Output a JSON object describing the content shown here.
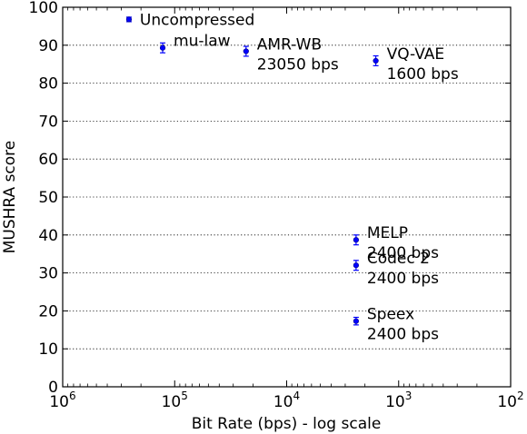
{
  "chart_data": {
    "type": "scatter",
    "title": "",
    "xlabel": "Bit Rate (bps) - log scale",
    "ylabel": "MUSHRA score",
    "x_scale": "log",
    "x_reversed": true,
    "xlim": [
      1000000,
      100
    ],
    "ylim": [
      0,
      100
    ],
    "grid": "horizontal dotted",
    "marker_color": "#0000ff",
    "x_ticks": [
      {
        "base": "10",
        "exp": "6"
      },
      {
        "base": "10",
        "exp": "5"
      },
      {
        "base": "10",
        "exp": "4"
      },
      {
        "base": "10",
        "exp": "3"
      },
      {
        "base": "10",
        "exp": "2"
      }
    ],
    "x_tick_values": [
      1000000,
      100000,
      10000,
      1000,
      100
    ],
    "y_ticks": [
      "0",
      "10",
      "20",
      "30",
      "40",
      "50",
      "60",
      "70",
      "80",
      "90",
      "100"
    ],
    "y_tick_values": [
      0,
      10,
      20,
      30,
      40,
      50,
      60,
      70,
      80,
      90,
      100
    ],
    "points": [
      {
        "x": 256000,
        "y": 96.8,
        "err": 0.6,
        "label": [
          "Uncompressed"
        ],
        "anchor": "right"
      },
      {
        "x": 128000,
        "y": 89.3,
        "err": 1.3,
        "label": [
          "mu-law"
        ],
        "anchor": "right-up"
      },
      {
        "x": 23050,
        "y": 88.4,
        "err": 1.3,
        "label": [
          "AMR-WB",
          "23050 bps"
        ],
        "anchor": "right"
      },
      {
        "x": 1600,
        "y": 85.9,
        "err": 1.3,
        "label": [
          "VQ-VAE",
          "1600 bps"
        ],
        "anchor": "right"
      },
      {
        "x": 2400,
        "y": 38.7,
        "err": 1.3,
        "label": [
          "MELP",
          "2400 bps"
        ],
        "anchor": "right"
      },
      {
        "x": 2400,
        "y": 32.0,
        "err": 1.3,
        "label": [
          "Codec 2",
          "2400 bps"
        ],
        "anchor": "right"
      },
      {
        "x": 2400,
        "y": 17.3,
        "err": 1.0,
        "label": [
          "Speex",
          "2400 bps"
        ],
        "anchor": "right"
      }
    ]
  }
}
